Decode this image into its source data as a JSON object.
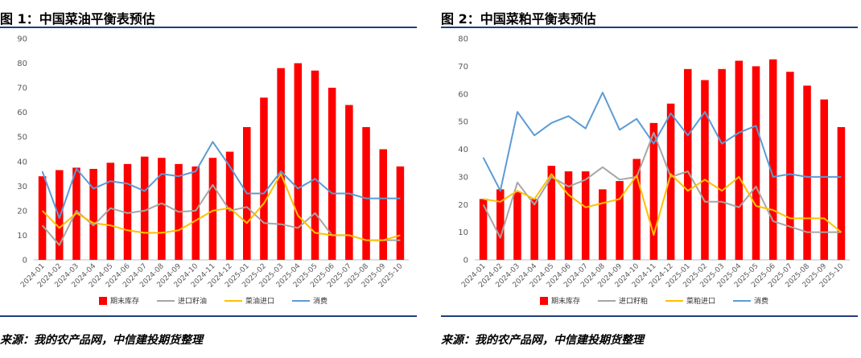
{
  "colors": {
    "stock": "#ff0000",
    "import_meal": "#a6a6a6",
    "import_oil": "#ffc000",
    "consumption": "#5b9bd5",
    "rule": "#1f3f7a"
  },
  "chart_data": [
    {
      "type": "bar",
      "title": "图 1：中国菜油平衡表预估",
      "source": "来源：我的农产品网，中信建投期货整理",
      "categories": [
        "2024-01",
        "2024-02",
        "2024-03",
        "2024-04",
        "2024-05",
        "2024-06",
        "2024-07",
        "2024-08",
        "2024-09",
        "2024-10",
        "2024-11",
        "2024-12",
        "2025-01",
        "2025-02",
        "2025-03",
        "2025-04",
        "2025-05",
        "2025-06",
        "2025-07",
        "2025-08",
        "2025-09",
        "2025-10"
      ],
      "ylim": [
        0,
        90
      ],
      "yticks": [
        0,
        10,
        20,
        30,
        40,
        50,
        60,
        70,
        80,
        90
      ],
      "grid": false,
      "legend_position": "bottom",
      "series": [
        {
          "name": "期末库存",
          "type": "bar",
          "color_key": "stock",
          "values": [
            34,
            36.5,
            37.5,
            37,
            39.5,
            39,
            42,
            41.5,
            39,
            38,
            41.5,
            44,
            54,
            66,
            78,
            80,
            77,
            70,
            63,
            54,
            45,
            38
          ]
        },
        {
          "name": "进口籽油",
          "type": "line",
          "color_key": "import_meal",
          "values": [
            14,
            6,
            20,
            14,
            21,
            19,
            20,
            23,
            19.5,
            20,
            30.5,
            20,
            21.5,
            15,
            14.5,
            13,
            19,
            10,
            10,
            8,
            8,
            8
          ]
        },
        {
          "name": "菜油进口",
          "type": "line",
          "color_key": "import_oil",
          "values": [
            20,
            13,
            19,
            15,
            14,
            12,
            11,
            11,
            12,
            16,
            20,
            21,
            15,
            23,
            35,
            18,
            11,
            10,
            10,
            8,
            8,
            10
          ]
        },
        {
          "name": "消费",
          "type": "line",
          "color_key": "consumption",
          "values": [
            36,
            17,
            37,
            29,
            32,
            31,
            28,
            35,
            34,
            36,
            48,
            38,
            27,
            27,
            36,
            29,
            33,
            27,
            27,
            25,
            25,
            25
          ]
        }
      ]
    },
    {
      "type": "bar",
      "title": "图 2：中国菜粕平衡表预估",
      "source": "来源：我的农产品网，中信建投期货整理",
      "categories": [
        "2024-01",
        "2024-02",
        "2024-03",
        "2024-04",
        "2024-05",
        "2024-06",
        "2024-07",
        "2024-08",
        "2024-09",
        "2024-10",
        "2024-11",
        "2024-12",
        "2025-01",
        "2025-02",
        "2025-03",
        "2025-04",
        "2025-05",
        "2025-06",
        "2025-07",
        "2025-08",
        "2025-09",
        "2025-10"
      ],
      "ylim": [
        0,
        80
      ],
      "yticks": [
        0,
        10,
        20,
        30,
        40,
        50,
        60,
        70,
        80
      ],
      "grid": false,
      "legend_position": "bottom",
      "series": [
        {
          "name": "期末库存",
          "type": "bar",
          "color_key": "stock",
          "values": [
            22,
            25.5,
            24.5,
            22,
            34,
            32,
            32,
            25.5,
            28.5,
            36.5,
            49.5,
            56.5,
            69,
            65,
            69,
            72,
            70,
            72.5,
            68,
            63,
            58,
            48
          ]
        },
        {
          "name": "进口籽粕",
          "type": "line",
          "color_key": "import_meal",
          "values": [
            20,
            8,
            28,
            20,
            30,
            26.5,
            29,
            33.5,
            29,
            30,
            46,
            30,
            32,
            21,
            21,
            19,
            26.5,
            14,
            12,
            10,
            10,
            10
          ]
        },
        {
          "name": "菜粕进口",
          "type": "line",
          "color_key": "import_oil",
          "values": [
            22,
            21,
            25,
            22,
            31,
            23.5,
            19,
            20.5,
            22,
            30.5,
            9,
            31,
            25,
            29,
            25,
            30,
            19.5,
            18,
            15,
            15,
            15,
            10
          ]
        },
        {
          "name": "消费",
          "type": "line",
          "color_key": "consumption",
          "values": [
            37,
            25,
            53.5,
            45,
            49.5,
            52,
            47.5,
            60.5,
            47,
            51,
            42,
            53,
            45,
            53.5,
            42,
            46,
            48.5,
            30,
            31,
            30,
            30,
            30
          ]
        }
      ]
    }
  ]
}
